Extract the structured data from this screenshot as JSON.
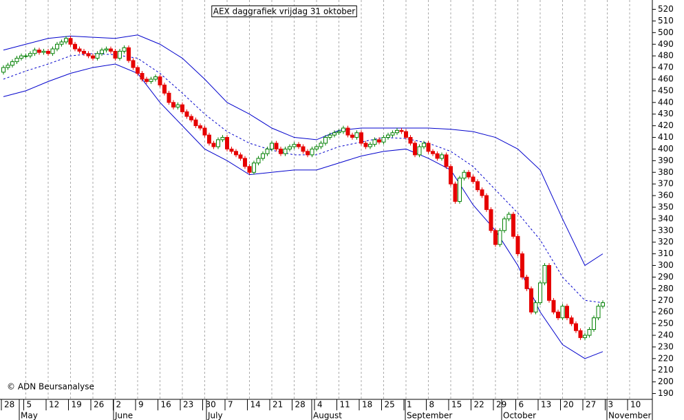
{
  "chart_data": {
    "type": "candlestick",
    "title": "AEX daggrafiek vrijdag 31 oktober",
    "note": "© ADN Beursanalyse",
    "x_tick_labels": [
      "28",
      "5",
      "12",
      "19",
      "26",
      "2",
      "9",
      "16",
      "23",
      "30",
      "7",
      "14",
      "21",
      "28",
      "4",
      "11",
      "18",
      "25",
      "1",
      "8",
      "15",
      "22",
      "29",
      "6",
      "13",
      "20",
      "27",
      "3",
      "10"
    ],
    "month_labels": [
      "May",
      "June",
      "July",
      "August",
      "September",
      "October",
      "November"
    ],
    "up_color": "#008000",
    "down_color": "#e60000",
    "candles": [
      [
        466,
        472,
        464,
        470
      ],
      [
        470,
        474,
        468,
        472
      ],
      [
        472,
        477,
        470,
        475
      ],
      [
        475,
        480,
        473,
        478
      ],
      [
        478,
        482,
        476,
        480
      ],
      [
        480,
        482,
        478,
        480
      ],
      [
        480,
        484,
        478,
        482
      ],
      [
        482,
        487,
        480,
        485
      ],
      [
        485,
        487,
        481,
        483
      ],
      [
        483,
        486,
        481,
        484
      ],
      [
        484,
        486,
        480,
        482
      ],
      [
        482,
        488,
        480,
        486
      ],
      [
        486,
        492,
        484,
        490
      ],
      [
        490,
        494,
        488,
        492
      ],
      [
        492,
        497,
        490,
        495
      ],
      [
        495,
        497,
        488,
        490
      ],
      [
        490,
        492,
        484,
        486
      ],
      [
        486,
        488,
        482,
        484
      ],
      [
        484,
        486,
        480,
        482
      ],
      [
        482,
        484,
        478,
        480
      ],
      [
        480,
        482,
        476,
        478
      ],
      [
        478,
        484,
        476,
        482
      ],
      [
        482,
        487,
        480,
        485
      ],
      [
        485,
        488,
        483,
        486
      ],
      [
        486,
        488,
        482,
        484
      ],
      [
        484,
        486,
        476,
        478
      ],
      [
        478,
        486,
        476,
        484
      ],
      [
        484,
        489,
        482,
        487
      ],
      [
        487,
        489,
        474,
        476
      ],
      [
        476,
        478,
        468,
        470
      ],
      [
        470,
        472,
        463,
        465
      ],
      [
        465,
        467,
        458,
        460
      ],
      [
        460,
        462,
        456,
        458
      ],
      [
        458,
        462,
        456,
        460
      ],
      [
        460,
        464,
        458,
        462
      ],
      [
        462,
        464,
        453,
        455
      ],
      [
        455,
        457,
        446,
        448
      ],
      [
        448,
        450,
        438,
        440
      ],
      [
        440,
        442,
        434,
        436
      ],
      [
        436,
        440,
        434,
        438
      ],
      [
        438,
        440,
        430,
        432
      ],
      [
        432,
        434,
        426,
        428
      ],
      [
        428,
        430,
        423,
        425
      ],
      [
        425,
        427,
        418,
        420
      ],
      [
        420,
        422,
        416,
        418
      ],
      [
        418,
        420,
        410,
        412
      ],
      [
        412,
        414,
        403,
        405
      ],
      [
        405,
        407,
        400,
        402
      ],
      [
        402,
        410,
        400,
        408
      ],
      [
        408,
        412,
        406,
        410
      ],
      [
        410,
        412,
        398,
        400
      ],
      [
        400,
        402,
        396,
        398
      ],
      [
        398,
        400,
        393,
        395
      ],
      [
        395,
        397,
        390,
        392
      ],
      [
        392,
        394,
        383,
        385
      ],
      [
        385,
        387,
        378,
        380
      ],
      [
        380,
        390,
        378,
        388
      ],
      [
        388,
        394,
        386,
        392
      ],
      [
        392,
        398,
        390,
        396
      ],
      [
        396,
        402,
        394,
        400
      ],
      [
        400,
        407,
        398,
        405
      ],
      [
        405,
        407,
        398,
        400
      ],
      [
        400,
        402,
        394,
        396
      ],
      [
        396,
        402,
        394,
        400
      ],
      [
        400,
        404,
        398,
        402
      ],
      [
        402,
        406,
        400,
        404
      ],
      [
        404,
        406,
        400,
        402
      ],
      [
        402,
        404,
        396,
        398
      ],
      [
        398,
        400,
        393,
        395
      ],
      [
        395,
        402,
        393,
        400
      ],
      [
        400,
        404,
        398,
        402
      ],
      [
        402,
        407,
        400,
        405
      ],
      [
        405,
        412,
        403,
        410
      ],
      [
        410,
        414,
        408,
        412
      ],
      [
        412,
        416,
        410,
        414
      ],
      [
        414,
        417,
        412,
        415
      ],
      [
        415,
        420,
        413,
        418
      ],
      [
        418,
        420,
        410,
        412
      ],
      [
        412,
        414,
        408,
        410
      ],
      [
        410,
        416,
        408,
        414
      ],
      [
        414,
        416,
        403,
        405
      ],
      [
        405,
        407,
        400,
        402
      ],
      [
        402,
        406,
        400,
        404
      ],
      [
        404,
        410,
        402,
        408
      ],
      [
        408,
        410,
        404,
        406
      ],
      [
        406,
        412,
        404,
        410
      ],
      [
        410,
        414,
        408,
        412
      ],
      [
        412,
        416,
        410,
        414
      ],
      [
        414,
        418,
        412,
        416
      ],
      [
        416,
        418,
        413,
        415
      ],
      [
        415,
        417,
        408,
        410
      ],
      [
        410,
        412,
        403,
        405
      ],
      [
        405,
        407,
        393,
        395
      ],
      [
        395,
        404,
        393,
        402
      ],
      [
        402,
        407,
        400,
        405
      ],
      [
        405,
        407,
        396,
        398
      ],
      [
        398,
        400,
        394,
        396
      ],
      [
        396,
        398,
        390,
        392
      ],
      [
        392,
        397,
        390,
        395
      ],
      [
        395,
        397,
        383,
        385
      ],
      [
        385,
        387,
        368,
        370
      ],
      [
        370,
        372,
        353,
        355
      ],
      [
        355,
        377,
        353,
        375
      ],
      [
        375,
        382,
        373,
        380
      ],
      [
        380,
        382,
        374,
        376
      ],
      [
        376,
        378,
        370,
        372
      ],
      [
        372,
        374,
        363,
        365
      ],
      [
        365,
        367,
        358,
        360
      ],
      [
        360,
        362,
        346,
        348
      ],
      [
        348,
        350,
        328,
        330
      ],
      [
        330,
        332,
        316,
        318
      ],
      [
        318,
        332,
        316,
        330
      ],
      [
        330,
        342,
        328,
        340
      ],
      [
        340,
        346,
        338,
        344
      ],
      [
        344,
        346,
        323,
        325
      ],
      [
        325,
        327,
        308,
        310
      ],
      [
        310,
        312,
        288,
        290
      ],
      [
        290,
        292,
        278,
        280
      ],
      [
        280,
        282,
        258,
        260
      ],
      [
        260,
        270,
        258,
        268
      ],
      [
        268,
        287,
        266,
        285
      ],
      [
        285,
        302,
        283,
        300
      ],
      [
        300,
        302,
        268,
        270
      ],
      [
        270,
        272,
        258,
        260
      ],
      [
        260,
        262,
        253,
        255
      ],
      [
        255,
        267,
        253,
        265
      ],
      [
        265,
        267,
        253,
        255
      ],
      [
        255,
        257,
        248,
        250
      ],
      [
        250,
        252,
        242,
        244
      ],
      [
        244,
        246,
        236,
        238
      ],
      [
        238,
        242,
        236,
        240
      ],
      [
        240,
        247,
        238,
        245
      ],
      [
        245,
        257,
        243,
        255
      ],
      [
        255,
        267,
        253,
        265
      ],
      [
        265,
        270,
        263,
        268
      ]
    ],
    "bands": [
      {
        "color": "#0000cc",
        "dashed": false,
        "values": [
          485,
          490,
          495,
          497,
          496,
          495,
          498,
          490,
          478,
          460,
          440,
          430,
          418,
          410,
          408,
          416,
          418,
          418,
          418,
          418,
          417,
          415,
          410,
          400,
          382,
          340,
          300,
          310
        ]
      },
      {
        "color": "#0000cc",
        "dashed": true,
        "values": [
          460,
          467,
          473,
          480,
          482,
          481,
          478,
          465,
          448,
          430,
          415,
          405,
          399,
          395,
          395,
          402,
          406,
          410,
          409,
          405,
          398,
          385,
          365,
          345,
          322,
          290,
          270,
          268
        ]
      },
      {
        "color": "#0000cc",
        "dashed": false,
        "values": [
          445,
          450,
          458,
          465,
          470,
          473,
          465,
          440,
          420,
          400,
          390,
          378,
          380,
          382,
          382,
          388,
          394,
          398,
          400,
          392,
          382,
          352,
          330,
          300,
          260,
          232,
          220,
          226
        ]
      }
    ],
    "ylim": [
      185,
      528
    ],
    "yticks": [
      190,
      200,
      210,
      220,
      230,
      240,
      250,
      260,
      270,
      280,
      290,
      300,
      310,
      320,
      330,
      340,
      350,
      360,
      370,
      380,
      390,
      400,
      410,
      420,
      430,
      440,
      450,
      460,
      470,
      480,
      490,
      500,
      510,
      520
    ],
    "grid": "x"
  }
}
